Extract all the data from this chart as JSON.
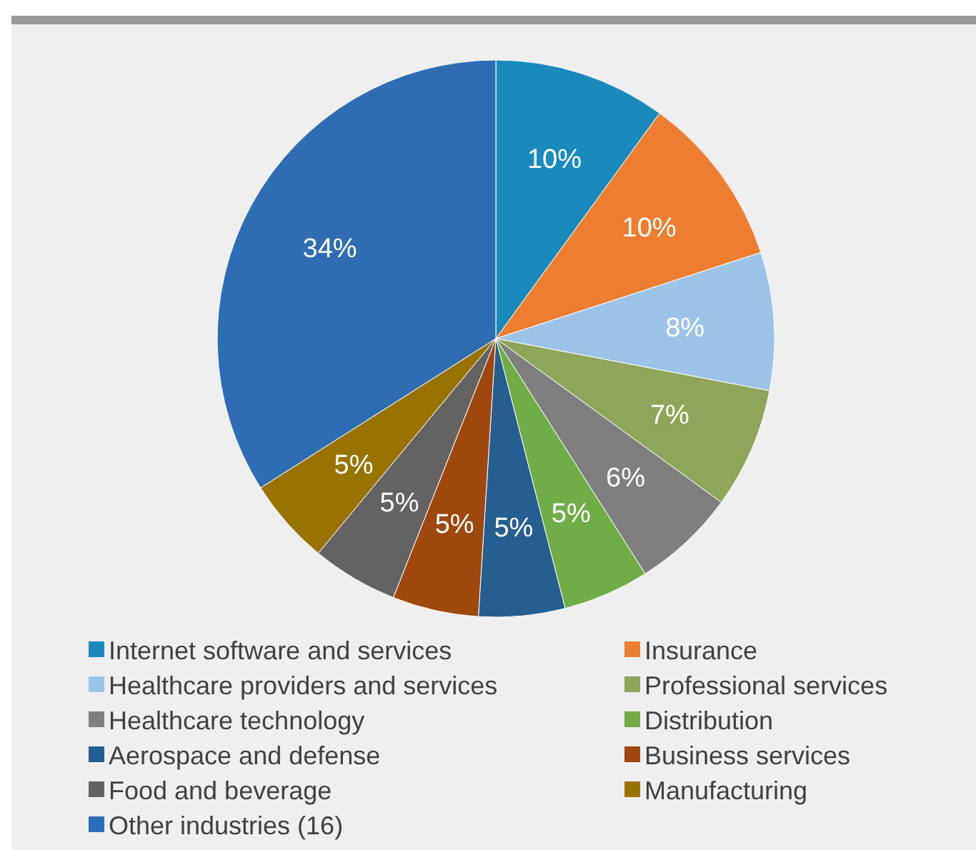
{
  "chart_data": {
    "type": "pie",
    "categories": [
      "Internet software and services",
      "Insurance",
      "Healthcare providers and services",
      "Professional services",
      "Healthcare technology",
      "Distribution",
      "Aerospace and defense",
      "Business services",
      "Food and beverage",
      "Manufacturing",
      "Other industries (16)"
    ],
    "values": [
      10,
      10,
      8,
      7,
      6,
      5,
      5,
      5,
      5,
      5,
      34
    ],
    "colors": [
      "#1a8abc",
      "#ed7d31",
      "#9dc3e6",
      "#8fa55a",
      "#7f7f7f",
      "#70ad47",
      "#255e91",
      "#9e480e",
      "#636363",
      "#997300",
      "#2e6db4"
    ],
    "value_labels": [
      "10%",
      "10%",
      "8%",
      "7%",
      "6%",
      "5%",
      "5%",
      "5%",
      "5%",
      "5%",
      "34%"
    ],
    "legend": "bottom"
  }
}
